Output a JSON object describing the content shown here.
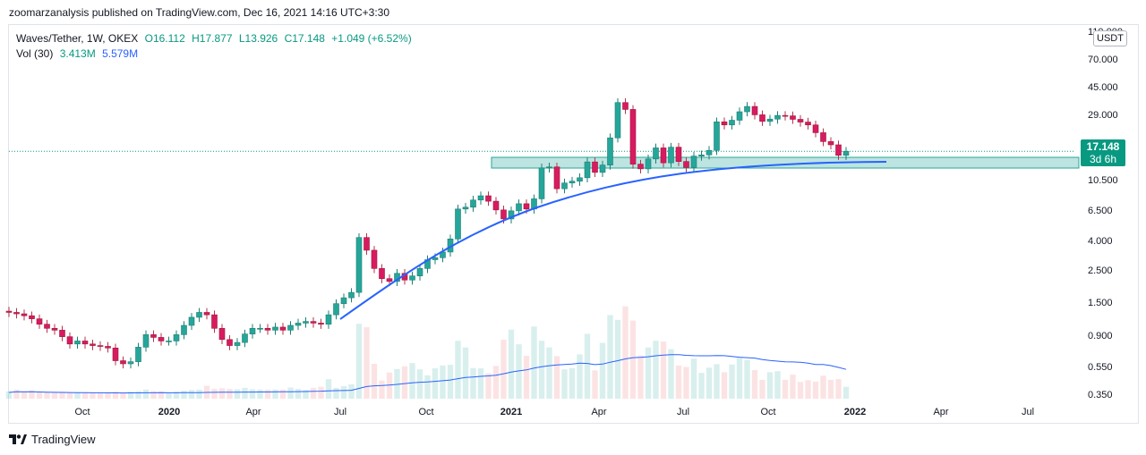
{
  "header": {
    "published": "zoomarzanalysis published on TradingView.com, Dec 16, 2021 14:16 UTC+3:30"
  },
  "legend": {
    "symbol": "Waves/Tether, 1W, OKEX",
    "open": "O16.112",
    "high": "H17.877",
    "low": "L13.926",
    "close": "C17.148",
    "change": "+1.049 (+6.52%)",
    "vol_label": "Vol (30)",
    "vol_value": "3.413M",
    "vol_ma": "5.579M"
  },
  "price_scale": {
    "currency": "USDT",
    "last_price": "17.148",
    "countdown": "3d 6h"
  },
  "footer": {
    "brand": "TradingView"
  },
  "colors": {
    "up": "#26a69a",
    "down": "#ef5350",
    "ma_line": "#2962ff",
    "zone_fill": "#b2dfdb",
    "zone_border": "#26a69a"
  },
  "chart_data": {
    "type": "candlestick",
    "scale": "log",
    "ylim": [
      0.3,
      120
    ],
    "x_ticks": [
      "Oct",
      "2020",
      "Apr",
      "Jul",
      "Oct",
      "2021",
      "Apr",
      "Jul",
      "Oct",
      "2022",
      "Apr",
      "Jul"
    ],
    "y_ticks": [
      "110.000",
      "70.000",
      "45.000",
      "29.000",
      "17.148",
      "10.500",
      "6.500",
      "4.000",
      "2.500",
      "1.500",
      "0.900",
      "0.550",
      "0.350"
    ],
    "candles_close": [
      1.35,
      1.32,
      1.28,
      1.22,
      1.12,
      1.05,
      1.02,
      0.92,
      0.82,
      0.86,
      0.82,
      0.8,
      0.79,
      0.77,
      0.63,
      0.6,
      0.62,
      0.78,
      0.95,
      0.91,
      0.86,
      0.86,
      0.95,
      1.1,
      1.25,
      1.35,
      1.3,
      1.05,
      0.88,
      0.8,
      0.84,
      0.96,
      1.05,
      1.05,
      1.02,
      1.07,
      1.02,
      1.1,
      1.14,
      1.17,
      1.14,
      1.12,
      1.3,
      1.55,
      1.7,
      1.85,
      4.4,
      3.6,
      2.7,
      2.3,
      2.2,
      2.5,
      2.25,
      2.4,
      2.7,
      3.1,
      3.2,
      3.5,
      4.3,
      6.9,
      7.1,
      7.95,
      8.5,
      7.8,
      6.8,
      5.9,
      6.7,
      7.5,
      6.9,
      8.1,
      13.2,
      13.4,
      9.5,
      10.4,
      10.7,
      11.3,
      14.5,
      12.3,
      13.8,
      21.2,
      37.0,
      33.2,
      14.0,
      13.0,
      15.2,
      18.1,
      14.3,
      18.3,
      14.6,
      13.3,
      15.9,
      16.2,
      17.4,
      27.3,
      26.0,
      28.0,
      32.0,
      34.8,
      30.5,
      27.5,
      28.5,
      30.2,
      30.0,
      28.4,
      27.2,
      26.0,
      23.0,
      20.0,
      19.0,
      16.1,
      17.148
    ],
    "volume": [
      2.1,
      2.6,
      2.2,
      2.4,
      2.0,
      1.9,
      1.8,
      2.0,
      1.8,
      1.8,
      1.7,
      1.7,
      1.7,
      1.6,
      2.0,
      1.8,
      2.0,
      2.2,
      2.6,
      2.2,
      2.1,
      1.8,
      2.0,
      2.3,
      2.5,
      2.6,
      3.7,
      2.8,
      3.0,
      2.8,
      2.7,
      3.1,
      2.7,
      2.6,
      2.6,
      2.6,
      2.6,
      3.2,
      2.8,
      2.5,
      3.1,
      3.4,
      5.6,
      3.1,
      3.6,
      4.1,
      21.5,
      20.5,
      10.0,
      5.2,
      7.5,
      8.5,
      9.3,
      10.2,
      8.4,
      6.7,
      8.7,
      9.5,
      9.7,
      16.6,
      14.7,
      8.8,
      8.7,
      7.3,
      9.4,
      16.9,
      19.8,
      15.6,
      12.3,
      20.7,
      16.6,
      14.7,
      12.2,
      8.4,
      8.8,
      12.7,
      18.6,
      8.1,
      16.0,
      24.0,
      22.6,
      26.5,
      22.4,
      12.4,
      14.7,
      16.6,
      16.4,
      14.2,
      9.5,
      9.1,
      11.5,
      7.4,
      8.9,
      9.9,
      7.6,
      9.8,
      11.7,
      11.1,
      8.2,
      5.4,
      7.6,
      7.9,
      5.4,
      6.9,
      4.8,
      5.3,
      4.9,
      6.6,
      5.4,
      5.6,
      3.413
    ],
    "series": [
      {
        "name": "Vol (30)"
      }
    ]
  }
}
